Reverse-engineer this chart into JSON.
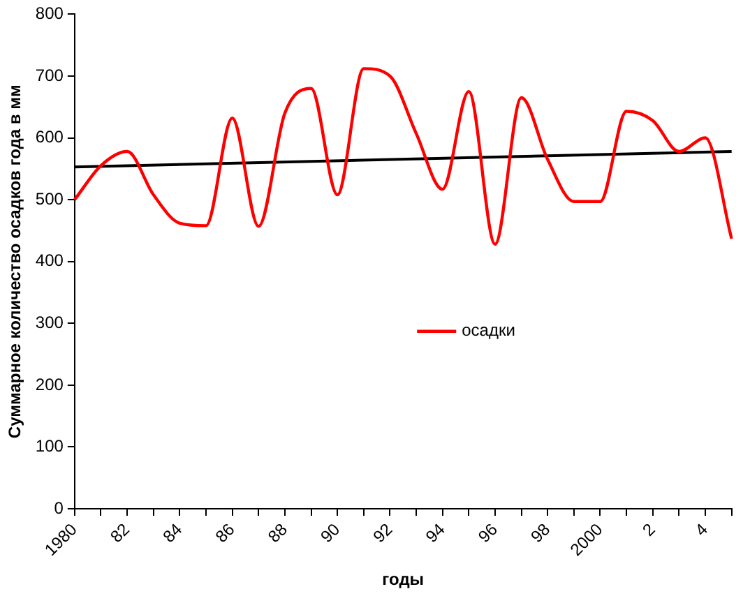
{
  "chart_data": {
    "type": "line",
    "xlabel": "годы",
    "ylabel": "Суммарное количество осадков года в мм",
    "categories": [
      "1980",
      null,
      "82",
      null,
      "84",
      null,
      "86",
      null,
      "88",
      null,
      "90",
      null,
      "92",
      null,
      "94",
      null,
      "96",
      null,
      "98",
      null,
      "2000",
      null,
      "2",
      null,
      "4",
      null
    ],
    "series": [
      {
        "name": "осадки",
        "color": "#ff0000",
        "values": [
          500,
          555,
          578,
          508,
          462,
          458,
          632,
          457,
          640,
          680,
          508,
          712,
          700,
          607,
          517,
          675,
          428,
          665,
          565,
          497,
          497,
          643,
          628,
          578,
          600,
          437
        ]
      },
      {
        "type": "line",
        "color": "#000000",
        "values": [
          553,
          null,
          null,
          null,
          null,
          null,
          null,
          null,
          null,
          null,
          null,
          null,
          null,
          null,
          null,
          null,
          null,
          null,
          null,
          null,
          null,
          null,
          null,
          null,
          null,
          578
        ]
      }
    ],
    "ylim": [
      0,
      800
    ],
    "yticks": [
      0,
      100,
      200,
      300,
      400,
      500,
      600,
      700,
      800
    ],
    "grid": false,
    "legend": "center",
    "marker": "none",
    "line_style": "solid"
  }
}
